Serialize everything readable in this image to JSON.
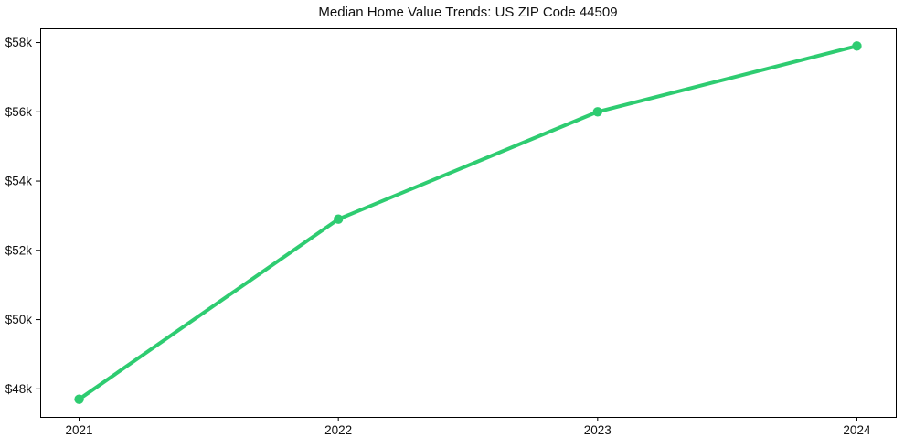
{
  "chart_data": {
    "type": "line",
    "title": "Median Home Value Trends: US ZIP Code 44509",
    "x": [
      "2021",
      "2022",
      "2023",
      "2024"
    ],
    "values": [
      47700,
      52900,
      56000,
      57900
    ],
    "xlabel": "",
    "ylabel": "",
    "xlim": [
      2020.85,
      2024.15
    ],
    "ylim": [
      47190,
      58410
    ],
    "y_ticks": [
      48000,
      50000,
      52000,
      54000,
      56000,
      58000
    ],
    "y_tick_labels": [
      "$48k",
      "$50k",
      "$52k",
      "$54k",
      "$56k",
      "$58k"
    ],
    "grid": false,
    "legend": "none",
    "line_color": "#2ecc71",
    "marker": "circle",
    "frame_color": "#000000",
    "text_color": "#111111"
  }
}
